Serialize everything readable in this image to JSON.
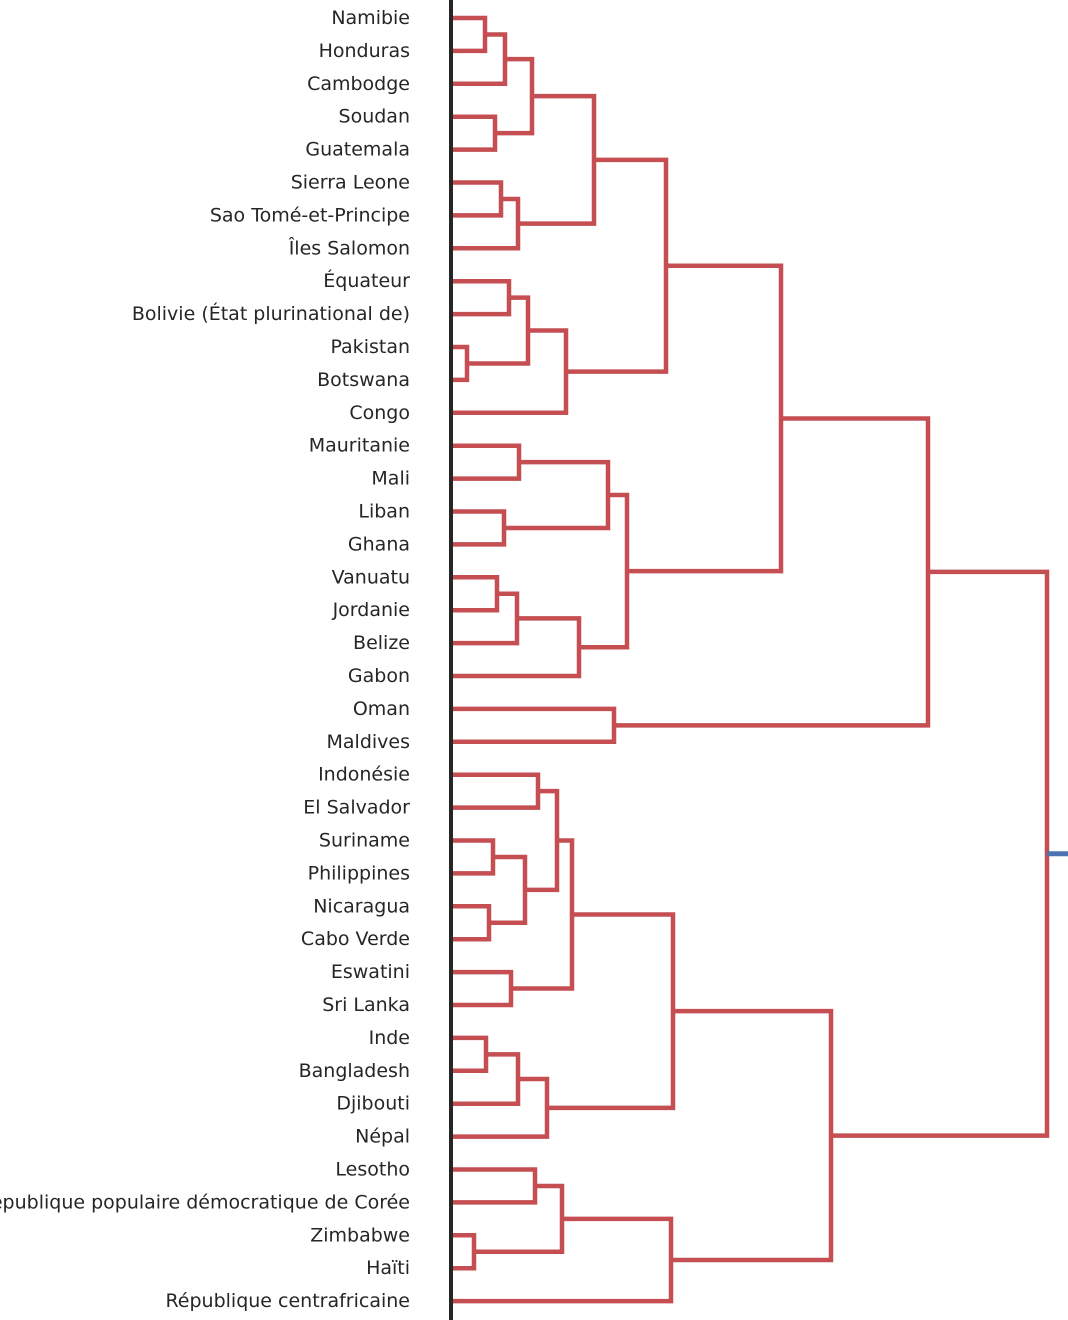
{
  "chart_data": {
    "type": "dendrogram",
    "orientation": "left",
    "colors": {
      "cluster": "#c44e52",
      "root_link": "#4c72b0",
      "axis": "#262626"
    },
    "leaves": [
      "Namibie",
      "Honduras",
      "Cambodge",
      "Soudan",
      "Guatemala",
      "Sierra Leone",
      "Sao Tomé-et-Principe",
      "Îles Salomon",
      "Équateur",
      "Bolivie (État plurinational de)",
      "Pakistan",
      "Botswana",
      "Congo",
      "Mauritanie",
      "Mali",
      "Liban",
      "Ghana",
      "Vanuatu",
      "Jordanie",
      "Belize",
      "Gabon",
      "Oman",
      "Maldives",
      "Indonésie",
      "El Salvador",
      "Suriname",
      "Philippines",
      "Nicaragua",
      "Cabo Verde",
      "Eswatini",
      "Sri Lanka",
      "Inde",
      "Bangladesh",
      "Djibouti",
      "Népal",
      "Lesotho",
      "République populaire démocratique de Corée",
      "Zimbabwe",
      "Haïti",
      "République centrafricaine"
    ],
    "merges": [
      [
        0,
        1,
        34
      ],
      [
        40,
        2,
        54
      ],
      [
        3,
        4,
        44
      ],
      [
        41,
        42,
        81
      ],
      [
        5,
        6,
        50
      ],
      [
        44,
        7,
        67
      ],
      [
        43,
        45,
        143
      ],
      [
        8,
        9,
        58
      ],
      [
        10,
        11,
        16
      ],
      [
        47,
        48,
        77
      ],
      [
        49,
        12,
        115
      ],
      [
        46,
        50,
        215
      ],
      [
        13,
        14,
        68
      ],
      [
        15,
        16,
        53
      ],
      [
        52,
        53,
        157
      ],
      [
        17,
        18,
        46
      ],
      [
        55,
        19,
        66
      ],
      [
        56,
        20,
        128
      ],
      [
        54,
        57,
        176
      ],
      [
        51,
        58,
        330
      ],
      [
        21,
        22,
        163
      ],
      [
        59,
        60,
        477
      ],
      [
        23,
        24,
        87
      ],
      [
        25,
        26,
        42
      ],
      [
        27,
        28,
        38
      ],
      [
        63,
        64,
        74
      ],
      [
        62,
        65,
        106
      ],
      [
        29,
        30,
        60
      ],
      [
        66,
        67,
        121
      ],
      [
        31,
        32,
        35
      ],
      [
        69,
        33,
        67
      ],
      [
        70,
        34,
        96
      ],
      [
        68,
        71,
        222
      ],
      [
        35,
        36,
        84
      ],
      [
        37,
        38,
        23
      ],
      [
        73,
        74,
        111
      ],
      [
        75,
        39,
        220
      ],
      [
        72,
        76,
        380
      ],
      [
        61,
        77,
        596
      ]
    ]
  }
}
